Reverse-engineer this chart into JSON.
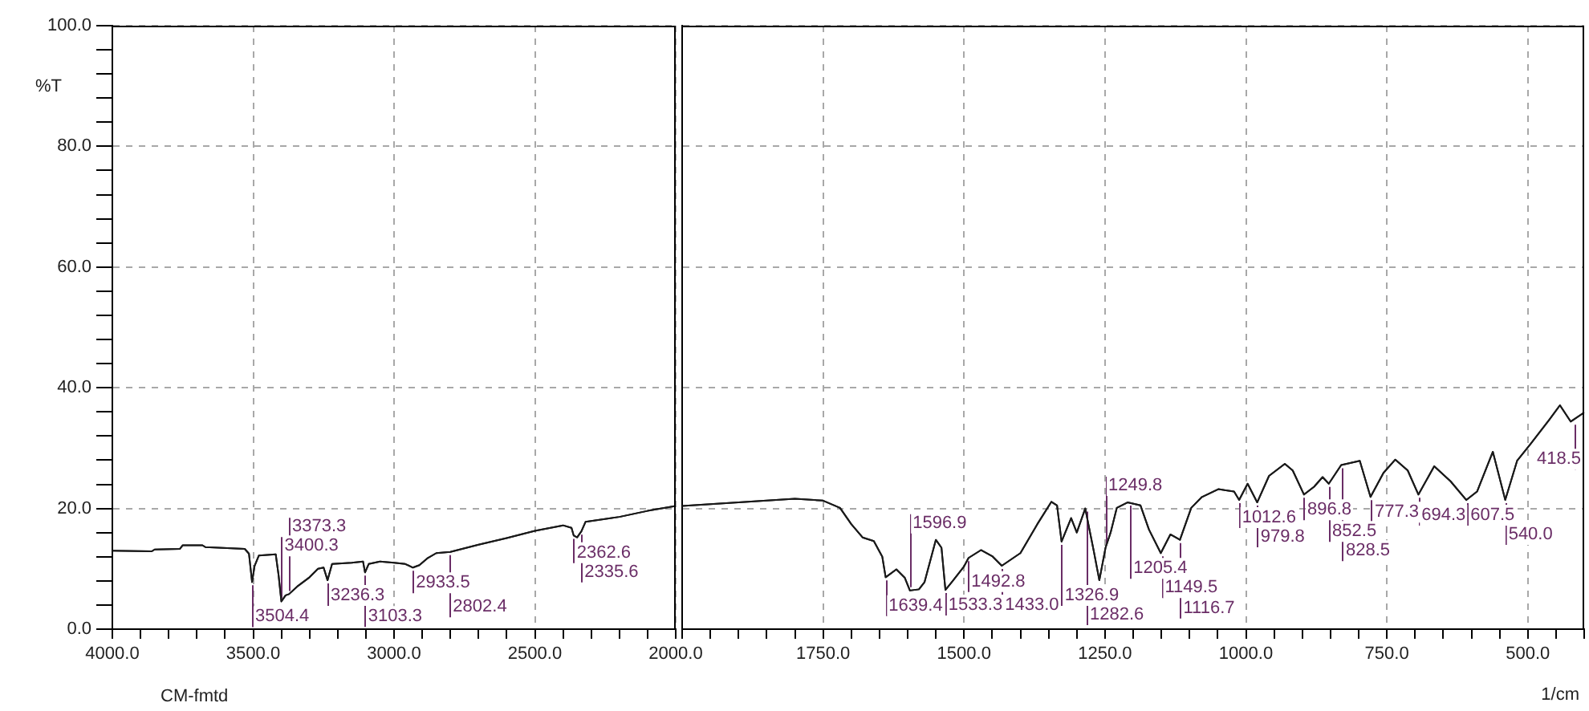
{
  "chart_data": [
    {
      "type": "line",
      "ylabel": "%T",
      "annotations": [
        "CM-fmtd",
        {
          "text": "3504.4",
          "x": 3504.4,
          "y": 7.8
        },
        {
          "text": "3400.3",
          "x": 3400.3,
          "y": 4.6
        },
        {
          "text": "3373.3",
          "x": 3373.3,
          "y": 5.8
        },
        {
          "text": "3236.3",
          "x": 3236.3,
          "y": 8.1
        },
        {
          "text": "3103.3",
          "x": 3103.3,
          "y": 9.4
        },
        {
          "text": "2933.5",
          "x": 2933.5,
          "y": 10.2
        },
        {
          "text": "2802.4",
          "x": 2802.4,
          "y": 12.8
        },
        {
          "text": "2362.6",
          "x": 2362.6,
          "y": 15.5
        },
        {
          "text": "2335.6",
          "x": 2335.6,
          "y": 16.2
        }
      ],
      "x": [
        4000,
        3860,
        3850,
        3760,
        3750,
        3680,
        3670,
        3530,
        3515,
        3504,
        3495,
        3480,
        3420,
        3410,
        3400,
        3385,
        3373,
        3340,
        3300,
        3270,
        3250,
        3236,
        3220,
        3150,
        3110,
        3103,
        3090,
        3050,
        3000,
        2960,
        2933,
        2910,
        2880,
        2850,
        2800,
        2700,
        2600,
        2500,
        2400,
        2370,
        2362,
        2350,
        2335,
        2320,
        2200,
        2100,
        2000
      ],
      "series": [
        {
          "color": "#1a1a1a",
          "values": [
            13.0,
            12.9,
            13.2,
            13.3,
            13.9,
            13.9,
            13.6,
            13.3,
            12.5,
            7.8,
            10.5,
            12.2,
            12.4,
            9.0,
            4.6,
            5.6,
            5.8,
            7.2,
            8.6,
            10.0,
            10.2,
            8.1,
            10.8,
            11.0,
            11.2,
            9.4,
            10.8,
            11.2,
            11.0,
            10.8,
            10.2,
            10.6,
            11.8,
            12.6,
            12.8,
            14.0,
            15.1,
            16.3,
            17.2,
            16.8,
            15.5,
            15.2,
            16.2,
            17.8,
            18.6,
            19.6,
            20.4
          ]
        }
      ],
      "xlim": [
        4000,
        2000
      ],
      "xticks": [
        {
          "value": 4000,
          "label": "4000.0"
        },
        {
          "value": 3900,
          "label": null
        },
        {
          "value": 3800,
          "label": null
        },
        {
          "value": 3700,
          "label": null
        },
        {
          "value": 3600,
          "label": null
        },
        {
          "value": 3500,
          "label": "3500.0"
        },
        {
          "value": 3400,
          "label": null
        },
        {
          "value": 3300,
          "label": null
        },
        {
          "value": 3200,
          "label": null
        },
        {
          "value": 3100,
          "label": null
        },
        {
          "value": 3000,
          "label": "3000.0"
        },
        {
          "value": 2900,
          "label": null
        },
        {
          "value": 2800,
          "label": null
        },
        {
          "value": 2700,
          "label": null
        },
        {
          "value": 2600,
          "label": null
        },
        {
          "value": 2500,
          "label": "2500.0"
        },
        {
          "value": 2400,
          "label": null
        },
        {
          "value": 2300,
          "label": null
        },
        {
          "value": 2200,
          "label": null
        },
        {
          "value": 2100,
          "label": null
        },
        {
          "value": 2000,
          "label": "2000.0"
        }
      ],
      "ylim": [
        0,
        100
      ],
      "yticks": [
        {
          "value": 0,
          "label": "0.0"
        },
        {
          "value": 4,
          "label": null
        },
        {
          "value": 8,
          "label": null
        },
        {
          "value": 12,
          "label": null
        },
        {
          "value": 16,
          "label": null
        },
        {
          "value": 20,
          "label": "20.0"
        },
        {
          "value": 24,
          "label": null
        },
        {
          "value": 28,
          "label": null
        },
        {
          "value": 32,
          "label": null
        },
        {
          "value": 36,
          "label": null
        },
        {
          "value": 40,
          "label": "40.0"
        },
        {
          "value": 44,
          "label": null
        },
        {
          "value": 48,
          "label": null
        },
        {
          "value": 52,
          "label": null
        },
        {
          "value": 56,
          "label": null
        },
        {
          "value": 60,
          "label": "60.0"
        },
        {
          "value": 64,
          "label": null
        },
        {
          "value": 68,
          "label": null
        },
        {
          "value": 72,
          "label": null
        },
        {
          "value": 76,
          "label": null
        },
        {
          "value": 80,
          "label": "80.0"
        },
        {
          "value": 84,
          "label": null
        },
        {
          "value": 88,
          "label": null
        },
        {
          "value": 92,
          "label": null
        },
        {
          "value": 96,
          "label": null
        },
        {
          "value": 100,
          "label": "100.0"
        }
      ],
      "grid": true
    },
    {
      "type": "line",
      "xlabel": "1/cm",
      "tick_labels": "x",
      "annotations": [
        {
          "text": "1639.4",
          "x": 1639.4,
          "y": 8.6
        },
        {
          "text": "1596.9",
          "x": 1596.9,
          "y": 6.4
        },
        {
          "text": "1533.3",
          "x": 1533.3,
          "y": 6.5
        },
        {
          "text": "1492.8",
          "x": 1492.8,
          "y": 11.8
        },
        {
          "text": "1433.0",
          "x": 1433.0,
          "y": 10.5
        },
        {
          "text": "1326.9",
          "x": 1326.9,
          "y": 14.5
        },
        {
          "text": "1282.6",
          "x": 1282.6,
          "y": 20.0
        },
        {
          "text": "1249.8",
          "x": 1249.8,
          "y": 13.5
        },
        {
          "text": "1205.4",
          "x": 1205.4,
          "y": 21.0
        },
        {
          "text": "1149.5",
          "x": 1149.5,
          "y": 12.6
        },
        {
          "text": "1116.7",
          "x": 1116.7,
          "y": 14.8
        },
        {
          "text": "1012.6",
          "x": 1012.6,
          "y": 21.4
        },
        {
          "text": "979.8",
          "x": 979.8,
          "y": 21.0
        },
        {
          "text": "896.8",
          "x": 896.8,
          "y": 22.3
        },
        {
          "text": "852.5",
          "x": 852.5,
          "y": 24.1
        },
        {
          "text": "828.5",
          "x": 828.5,
          "y": 27.2
        },
        {
          "text": "777.3",
          "x": 777.3,
          "y": 21.9
        },
        {
          "text": "694.3",
          "x": 694.3,
          "y": 22.3
        },
        {
          "text": "607.5",
          "x": 607.5,
          "y": 21.4
        },
        {
          "text": "540.0",
          "x": 540.0,
          "y": 21.4
        },
        {
          "text": "418.5",
          "x": 418.5,
          "y": 34.4
        }
      ],
      "x": [
        2000,
        1900,
        1800,
        1750,
        1720,
        1700,
        1680,
        1660,
        1645,
        1639,
        1620,
        1605,
        1596,
        1580,
        1570,
        1550,
        1540,
        1533,
        1520,
        1500,
        1492,
        1470,
        1450,
        1433,
        1400,
        1370,
        1345,
        1335,
        1327,
        1310,
        1300,
        1285,
        1270,
        1260,
        1249,
        1240,
        1229,
        1210,
        1187,
        1172,
        1151,
        1134,
        1117,
        1097,
        1078,
        1049,
        1021,
        1012,
        997,
        980,
        959,
        931,
        917,
        897,
        879,
        864,
        853,
        831,
        798,
        779,
        756,
        735,
        713,
        694,
        666,
        637,
        609,
        590,
        562,
        540,
        519,
        495,
        462,
        443,
        424,
        400
      ],
      "series": [
        {
          "color": "#1a1a1a",
          "values": [
            20.4,
            21.0,
            21.6,
            21.3,
            20.1,
            17.4,
            15.2,
            14.6,
            12.0,
            8.6,
            9.9,
            8.5,
            6.4,
            6.6,
            7.8,
            14.8,
            13.5,
            6.5,
            8.0,
            10.4,
            11.8,
            13.1,
            12.1,
            10.5,
            12.6,
            17.4,
            21.1,
            20.5,
            14.5,
            18.4,
            16.0,
            20.0,
            13.0,
            8.1,
            13.5,
            16.0,
            20.1,
            21.0,
            20.5,
            16.5,
            12.6,
            15.7,
            14.8,
            20.1,
            21.9,
            23.2,
            22.8,
            21.4,
            24.1,
            21.0,
            25.4,
            27.4,
            26.3,
            22.3,
            23.6,
            25.2,
            24.1,
            27.2,
            27.9,
            21.9,
            25.9,
            28.1,
            26.3,
            22.3,
            27.0,
            24.5,
            21.4,
            22.8,
            29.4,
            21.4,
            27.9,
            30.7,
            34.7,
            37.1,
            34.4,
            35.9
          ]
        }
      ],
      "xlim": [
        2000,
        400
      ],
      "xticks": [
        {
          "value": 2000,
          "label": null
        },
        {
          "value": 1950,
          "label": null
        },
        {
          "value": 1900,
          "label": null
        },
        {
          "value": 1850,
          "label": null
        },
        {
          "value": 1800,
          "label": null
        },
        {
          "value": 1750,
          "label": "1750.0"
        },
        {
          "value": 1700,
          "label": null
        },
        {
          "value": 1650,
          "label": null
        },
        {
          "value": 1600,
          "label": null
        },
        {
          "value": 1550,
          "label": null
        },
        {
          "value": 1500,
          "label": "1500.0"
        },
        {
          "value": 1450,
          "label": null
        },
        {
          "value": 1400,
          "label": null
        },
        {
          "value": 1350,
          "label": null
        },
        {
          "value": 1300,
          "label": null
        },
        {
          "value": 1250,
          "label": "1250.0"
        },
        {
          "value": 1200,
          "label": null
        },
        {
          "value": 1150,
          "label": null
        },
        {
          "value": 1100,
          "label": null
        },
        {
          "value": 1050,
          "label": null
        },
        {
          "value": 1000,
          "label": "1000.0"
        },
        {
          "value": 950,
          "label": null
        },
        {
          "value": 900,
          "label": null
        },
        {
          "value": 850,
          "label": null
        },
        {
          "value": 800,
          "label": null
        },
        {
          "value": 750,
          "label": "750.0"
        },
        {
          "value": 700,
          "label": null
        },
        {
          "value": 650,
          "label": null
        },
        {
          "value": 600,
          "label": null
        },
        {
          "value": 550,
          "label": null
        },
        {
          "value": 500,
          "label": "500.0"
        },
        {
          "value": 450,
          "label": null
        },
        {
          "value": 400,
          "label": null
        }
      ],
      "ylim": [
        0,
        100
      ],
      "yticks": [
        {
          "value": 0,
          "label": null
        },
        {
          "value": 20,
          "label": null
        },
        {
          "value": 40,
          "label": null
        },
        {
          "value": 60,
          "label": null
        },
        {
          "value": 80,
          "label": null
        },
        {
          "value": 100,
          "label": null
        }
      ],
      "grid": true
    }
  ]
}
